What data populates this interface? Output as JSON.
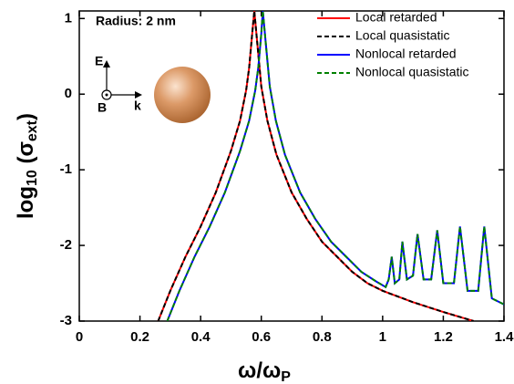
{
  "chart_data": {
    "type": "line",
    "xlabel": {
      "main": "ω/ω",
      "sub": "P"
    },
    "ylabel": {
      "main": "log",
      "sub": "10",
      "mid": " (σ",
      "sub2": "ext",
      "end": ")"
    },
    "annotations": {
      "radius": "Radius: 2 nm",
      "e": "E",
      "b": "B",
      "k": "k"
    },
    "xlim": [
      0,
      1.4
    ],
    "xticks": [
      0,
      0.2,
      0.4,
      0.6,
      0.8,
      1,
      1.2,
      1.4
    ],
    "ylim": [
      -3,
      1.1
    ],
    "yticks": [
      -3,
      -2,
      -1,
      0,
      1
    ],
    "legend": "top-right",
    "series": [
      {
        "name": "Local retarded",
        "color": "#ff0000",
        "dashed": false,
        "x": [
          0.26,
          0.3,
          0.35,
          0.4,
          0.45,
          0.5,
          0.53,
          0.55,
          0.56,
          0.57,
          0.577,
          0.585,
          0.6,
          0.62,
          0.65,
          0.7,
          0.75,
          0.8,
          0.85,
          0.9,
          0.95,
          1.0,
          1.1,
          1.2,
          1.3
        ],
        "values": [
          -3.0,
          -2.6,
          -2.15,
          -1.75,
          -1.3,
          -0.75,
          -0.35,
          0.05,
          0.35,
          0.8,
          1.1,
          0.75,
          0.1,
          -0.35,
          -0.8,
          -1.3,
          -1.65,
          -1.95,
          -2.15,
          -2.35,
          -2.5,
          -2.6,
          -2.75,
          -2.88,
          -3.0
        ]
      },
      {
        "name": "Local quasistatic",
        "color": "#000000",
        "dashed": true,
        "x": [
          0.26,
          0.3,
          0.35,
          0.4,
          0.45,
          0.5,
          0.53,
          0.55,
          0.56,
          0.57,
          0.577,
          0.585,
          0.6,
          0.62,
          0.65,
          0.7,
          0.75,
          0.8,
          0.85,
          0.9,
          0.95,
          1.0,
          1.1,
          1.2,
          1.3
        ],
        "values": [
          -3.0,
          -2.6,
          -2.15,
          -1.75,
          -1.3,
          -0.75,
          -0.35,
          0.05,
          0.35,
          0.8,
          1.1,
          0.75,
          0.1,
          -0.35,
          -0.8,
          -1.3,
          -1.65,
          -1.95,
          -2.15,
          -2.35,
          -2.5,
          -2.6,
          -2.75,
          -2.88,
          -3.0
        ]
      },
      {
        "name": "Nonlocal retarded",
        "color": "#0000ff",
        "dashed": false,
        "x": [
          0.29,
          0.33,
          0.38,
          0.43,
          0.48,
          0.53,
          0.56,
          0.58,
          0.59,
          0.6,
          0.605,
          0.613,
          0.628,
          0.648,
          0.678,
          0.728,
          0.778,
          0.83,
          0.88,
          0.93,
          0.98,
          1.01,
          1.02,
          1.03,
          1.04,
          1.055,
          1.065,
          1.08,
          1.1,
          1.115,
          1.135,
          1.16,
          1.18,
          1.2,
          1.235,
          1.255,
          1.28,
          1.315,
          1.335,
          1.36,
          1.4
        ],
        "values": [
          -3.0,
          -2.6,
          -2.15,
          -1.75,
          -1.3,
          -0.75,
          -0.35,
          0.05,
          0.35,
          0.8,
          1.1,
          0.75,
          0.1,
          -0.35,
          -0.8,
          -1.3,
          -1.65,
          -1.95,
          -2.15,
          -2.35,
          -2.48,
          -2.55,
          -2.45,
          -2.15,
          -2.5,
          -2.45,
          -1.95,
          -2.45,
          -2.4,
          -1.85,
          -2.45,
          -2.45,
          -1.8,
          -2.5,
          -2.5,
          -1.75,
          -2.6,
          -2.6,
          -1.75,
          -2.7,
          -2.78
        ]
      },
      {
        "name": "Nonlocal quasistatic",
        "color": "#008000",
        "dashed": true,
        "x": [
          0.29,
          0.33,
          0.38,
          0.43,
          0.48,
          0.53,
          0.56,
          0.58,
          0.59,
          0.6,
          0.605,
          0.613,
          0.628,
          0.648,
          0.678,
          0.728,
          0.778,
          0.83,
          0.88,
          0.93,
          0.98,
          1.01,
          1.02,
          1.03,
          1.04,
          1.055,
          1.065,
          1.08,
          1.1,
          1.115,
          1.135,
          1.16,
          1.18,
          1.2,
          1.235,
          1.255,
          1.28,
          1.315,
          1.335,
          1.36,
          1.4
        ],
        "values": [
          -3.0,
          -2.6,
          -2.15,
          -1.75,
          -1.3,
          -0.75,
          -0.35,
          0.05,
          0.35,
          0.8,
          1.1,
          0.75,
          0.1,
          -0.35,
          -0.8,
          -1.3,
          -1.65,
          -1.95,
          -2.15,
          -2.35,
          -2.48,
          -2.55,
          -2.45,
          -2.15,
          -2.5,
          -2.45,
          -1.95,
          -2.45,
          -2.4,
          -1.85,
          -2.45,
          -2.45,
          -1.8,
          -2.5,
          -2.5,
          -1.75,
          -2.6,
          -2.6,
          -1.75,
          -2.7,
          -2.78
        ]
      }
    ]
  }
}
